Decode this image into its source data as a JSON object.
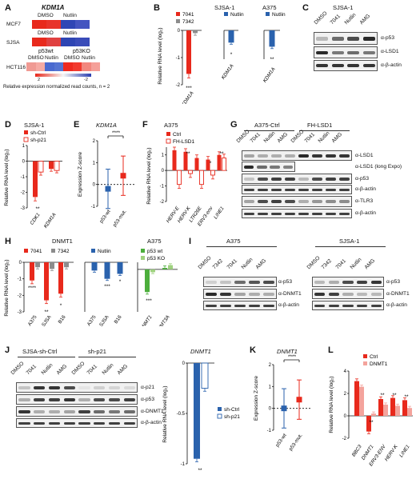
{
  "colors": {
    "red": "#e8291c",
    "gray": "#8c8c8c",
    "blue": "#2a62ad",
    "green": "#4cae3c",
    "lightgreen": "#9fd27f",
    "pink": "#f4a39c"
  },
  "panelA": {
    "letter": "A",
    "title": "KDM1A",
    "rows": [
      "MCF7",
      "SJSA",
      "HCT116"
    ],
    "col_headers": [
      "DMSO",
      "Nutlin"
    ],
    "p53wt": "p53wt",
    "p53ko": "p53KO",
    "scale_max": "2",
    "scale_min": "-2",
    "caption": "Relative expression normalized read counts, n = 2"
  },
  "panelB": {
    "letter": "B",
    "group1": "SJSA-1",
    "group2": "A375",
    "legend": [
      "7041",
      "7342",
      "Nutlin",
      "Nutlin"
    ],
    "ylabel": "Relative RNA level (log₂)",
    "ticks": [
      "0",
      "-1",
      "-2"
    ],
    "xlabels": [
      "KDM1A",
      "KDM1A",
      "KDM1A"
    ],
    "sig": [
      "***",
      "*",
      "**"
    ]
  },
  "panelC": {
    "letter": "C",
    "title": "SJSA-1",
    "lanes": [
      "DMSO",
      "7041",
      "Nutlin",
      "AMG"
    ],
    "bands": [
      "α-p53",
      "α-LSD1",
      "α-β-actin"
    ]
  },
  "panelD": {
    "letter": "D",
    "title": "SJSA-1",
    "legend": [
      "sh-Ctrl",
      "sh-p21"
    ],
    "ylabel": "Relative RNA level (log₂)",
    "ticks": [
      "1",
      "0",
      "-1",
      "-2",
      "-3"
    ],
    "xlabels": [
      "CDK1",
      "KDM1A"
    ],
    "sig": [
      "**"
    ]
  },
  "panelE": {
    "letter": "E",
    "title": "KDM1A",
    "ylabel": "Expression Z-score",
    "ticks": [
      "2",
      "1",
      "0",
      "-1"
    ],
    "xlabels": [
      "p53-wt",
      "p53-mut."
    ],
    "sig": "****"
  },
  "panelF": {
    "letter": "F",
    "title": "A375",
    "legend": [
      "Ctrl",
      "FH-LSD1"
    ],
    "ylabel": "Relative RNA level (log₂)",
    "ticks": [
      "1",
      "0",
      "-1",
      "-2"
    ],
    "xlabels": [
      "HERV-E",
      "HERV-K",
      "LTR26E",
      "ERV3-env",
      "LINE1"
    ],
    "sig": [
      "**",
      "*",
      "**"
    ]
  },
  "panelG": {
    "letter": "G",
    "group1": "A375-Ctrl",
    "group2": "FH-LSD1",
    "lanes": [
      "DMSO",
      "7041",
      "Nutlin",
      "AMG",
      "DMSO",
      "7041",
      "Nutlin",
      "AMG"
    ],
    "bands": [
      "α-LSD1",
      "α-LSD1 (long Expo)",
      "α-p53",
      "α-β-actin",
      "α-TLR3",
      "α-β-actin"
    ]
  },
  "panelH": {
    "letter": "H",
    "title1": "DNMT1",
    "title2": "A375",
    "legend": [
      "7041",
      "7342",
      "Nutlin",
      "p53 wt",
      "p53 KO"
    ],
    "ylabel": "Relative RNA level (log₂)",
    "ticks": [
      "0",
      "-1",
      "-2",
      "-3"
    ],
    "xlabels1": [
      "A375",
      "SJSA",
      "B16"
    ],
    "xlabels2": [
      "A375",
      "SJSA",
      "B16"
    ],
    "xlabels3": [
      "DNMT1",
      "DNMT3A"
    ],
    "sig1": [
      "****",
      "**",
      "*"
    ],
    "sig2": [
      "***",
      "*"
    ],
    "sig3": [
      "***"
    ]
  },
  "panelI": {
    "letter": "I",
    "group1": "A375",
    "group2": "SJSA-1",
    "lanes": [
      "DMSO",
      "7342",
      "7041",
      "Nutlin",
      "AMG"
    ],
    "bands": [
      "α-p53",
      "α-DNMT1",
      "α-β-actin"
    ]
  },
  "panelJ": {
    "letter": "J",
    "group1": "SJSA-sh-Ctrl",
    "group2": "sh-p21",
    "lanes": [
      "DMSO",
      "7041",
      "Nutlin",
      "AMG",
      "DMSO",
      "7041",
      "Nutlin",
      "AMG"
    ],
    "bands": [
      "α-p21",
      "α-p53",
      "α-DNMT1",
      "α-β-actin"
    ],
    "chart_title": "DNMT1",
    "ylabel": "Relative RNA level (log₂)",
    "ticks": [
      "0",
      "-0.5",
      "-1"
    ],
    "legend": [
      "sh-Ctrl",
      "sh-p21"
    ],
    "sig": "**"
  },
  "panelK": {
    "letter": "K",
    "title": "DNMT1",
    "ylabel": "Expression Z-score",
    "ticks": [
      "2",
      "1",
      "0",
      "-1"
    ],
    "xlabels": [
      "p53-wt",
      "p53-mut."
    ],
    "sig": "****"
  },
  "panelL": {
    "letter": "L",
    "legend": [
      "Ctrl",
      "DNMT1"
    ],
    "ylabel": "Relative RNA level (log₂)",
    "ticks": [
      "4",
      "2",
      "0",
      "-2"
    ],
    "xlabels": [
      "BBC3",
      "DNMT1",
      "ERV3-ENV",
      "HERV-K",
      "LINE1"
    ],
    "sig": [
      "**",
      "**",
      "**",
      "**"
    ]
  },
  "chart_data": [
    {
      "panel": "B",
      "type": "bar",
      "categories": [
        "KDM1A (SJSA-1 7041)",
        "KDM1A (SJSA-1 Nutlin)",
        "KDM1A (A375 Nutlin)"
      ],
      "values": [
        -1.6,
        -0.45,
        -0.6
      ],
      "ylim": [
        -2,
        0
      ]
    },
    {
      "panel": "D",
      "type": "bar",
      "categories": [
        "CDK1",
        "KDM1A"
      ],
      "series": [
        {
          "name": "sh-Ctrl",
          "values": [
            -2.3,
            -0.5
          ]
        },
        {
          "name": "sh-p21",
          "values": [
            -0.7,
            -0.6
          ]
        }
      ],
      "ylim": [
        -3,
        1
      ]
    },
    {
      "panel": "E",
      "type": "scatter",
      "categories": [
        "p53-wt",
        "p53-mut."
      ],
      "values": [
        -0.2,
        0.4
      ],
      "ylim": [
        -1,
        2
      ]
    },
    {
      "panel": "F",
      "type": "bar",
      "categories": [
        "HERV-E",
        "HERV-K",
        "LTR26E",
        "ERV3-env",
        "LINE1"
      ],
      "series": [
        {
          "name": "Ctrl",
          "values": [
            1.3,
            1.2,
            0.8,
            0.7,
            1.0
          ]
        },
        {
          "name": "FH-LSD1",
          "values": [
            -0.9,
            -0.2,
            -0.9,
            -0.3,
            0.8
          ]
        }
      ],
      "ylim": [
        -2,
        1.5
      ]
    },
    {
      "panel": "H",
      "type": "bar",
      "categories": [
        "A375",
        "SJSA",
        "B16"
      ],
      "series": [
        {
          "name": "7041",
          "values": [
            -1.1,
            -2.3,
            -1.9
          ]
        },
        {
          "name": "7342",
          "values": [
            -0.3,
            -0.4,
            -0.3
          ]
        }
      ],
      "ylim": [
        -3,
        0
      ]
    },
    {
      "panel": "H2",
      "type": "bar",
      "categories": [
        "A375",
        "SJSA",
        "B16"
      ],
      "series": [
        {
          "name": "Nutlin",
          "values": [
            -0.5,
            -1.0,
            -0.7
          ]
        }
      ],
      "ylim": [
        -3,
        0
      ]
    },
    {
      "panel": "H3",
      "type": "bar",
      "categories": [
        "DNMT1",
        "DNMT3A"
      ],
      "series": [
        {
          "name": "p53 wt",
          "values": [
            -1.6,
            0.1
          ]
        },
        {
          "name": "p53 KO",
          "values": [
            -0.2,
            0.3
          ]
        }
      ],
      "ylim": [
        -3,
        0.5
      ]
    },
    {
      "panel": "J",
      "type": "bar",
      "categories": [
        "DNMT1"
      ],
      "series": [
        {
          "name": "sh-Ctrl",
          "values": [
            -0.95
          ]
        },
        {
          "name": "sh-p21",
          "values": [
            -0.25
          ]
        }
      ],
      "ylim": [
        -1,
        0
      ]
    },
    {
      "panel": "K",
      "type": "scatter",
      "categories": [
        "p53-wt",
        "p53-mut."
      ],
      "values": [
        0.0,
        0.4
      ],
      "ylim": [
        -1,
        2
      ]
    },
    {
      "panel": "L",
      "type": "bar",
      "categories": [
        "BBC3",
        "DNMT1",
        "ERV3-ENV",
        "HERV-K",
        "LINE1"
      ],
      "series": [
        {
          "name": "Ctrl",
          "values": [
            3.1,
            -1.4,
            1.5,
            1.6,
            1.4
          ]
        },
        {
          "name": "DNMT1",
          "values": [
            2.6,
            0.2,
            1.0,
            0.9,
            0.7
          ]
        }
      ],
      "ylim": [
        -2,
        4
      ]
    }
  ]
}
